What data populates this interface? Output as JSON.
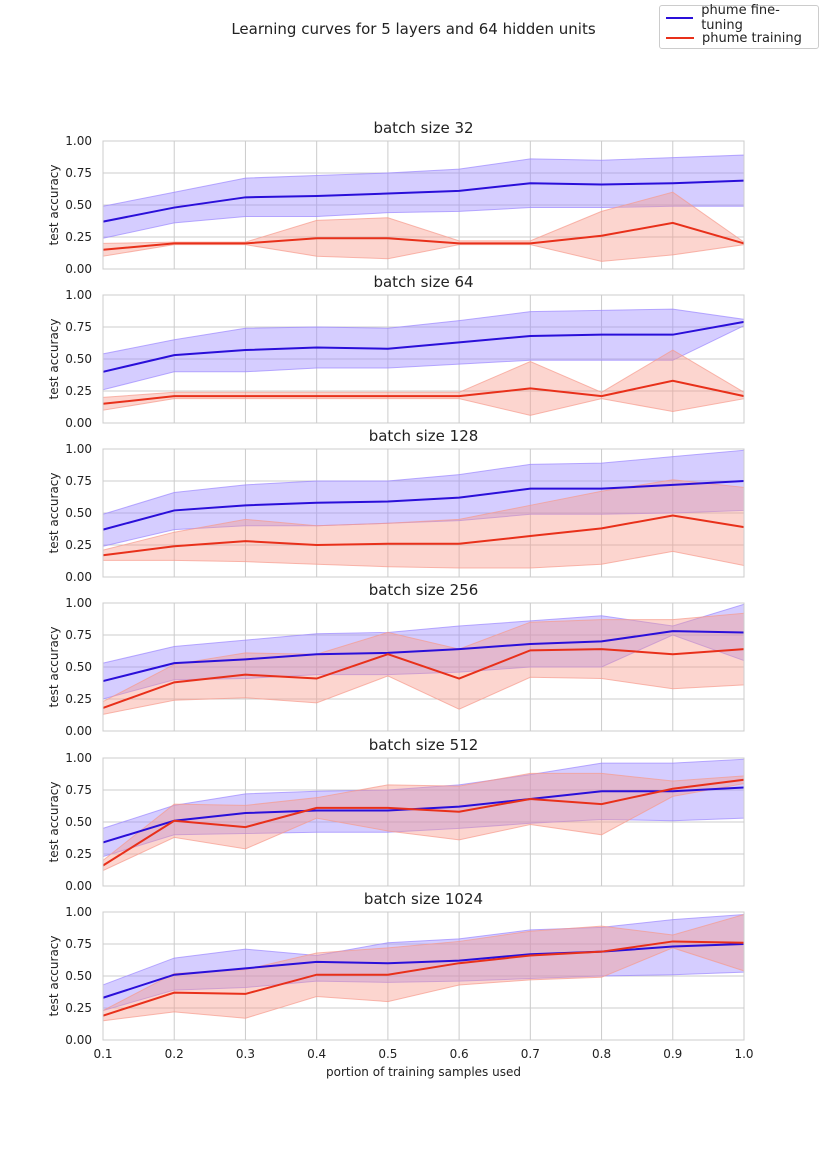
{
  "figure": {
    "suptitle": "Learning curves for 5 layers and 64 hidden units",
    "xlabel": "portion of training samples used",
    "ylabel": "test accuracy",
    "legend": [
      {
        "label": "phume fine-tuning",
        "color": "#2a0fd9"
      },
      {
        "label": "phume training",
        "color": "#e8301a"
      }
    ],
    "fill_colors": {
      "fine_tuning": "#9b87ff",
      "training": "#f79a8c"
    }
  },
  "chart_data": [
    {
      "type": "line",
      "title": "batch size 32",
      "x": [
        0.1,
        0.2,
        0.3,
        0.4,
        0.5,
        0.6,
        0.7,
        0.8,
        0.9,
        1.0
      ],
      "xlim": [
        0.1,
        1.0
      ],
      "ylim": [
        0,
        1
      ],
      "yticks": [
        0,
        0.25,
        0.5,
        0.75,
        1.0
      ],
      "grid": true,
      "series": [
        {
          "name": "phume fine-tuning",
          "values": [
            0.37,
            0.48,
            0.56,
            0.57,
            0.59,
            0.61,
            0.67,
            0.66,
            0.67,
            0.69
          ],
          "lower": [
            0.24,
            0.36,
            0.41,
            0.41,
            0.44,
            0.45,
            0.48,
            0.48,
            0.49,
            0.49
          ],
          "upper": [
            0.49,
            0.6,
            0.71,
            0.73,
            0.75,
            0.78,
            0.86,
            0.85,
            0.87,
            0.89
          ]
        },
        {
          "name": "phume training",
          "values": [
            0.15,
            0.2,
            0.2,
            0.24,
            0.24,
            0.2,
            0.2,
            0.26,
            0.36,
            0.2
          ],
          "lower": [
            0.1,
            0.19,
            0.19,
            0.1,
            0.08,
            0.19,
            0.19,
            0.06,
            0.11,
            0.19
          ],
          "upper": [
            0.2,
            0.21,
            0.21,
            0.38,
            0.4,
            0.22,
            0.22,
            0.45,
            0.6,
            0.21
          ]
        }
      ]
    },
    {
      "type": "line",
      "title": "batch size 64",
      "x": [
        0.1,
        0.2,
        0.3,
        0.4,
        0.5,
        0.6,
        0.7,
        0.8,
        0.9,
        1.0
      ],
      "xlim": [
        0.1,
        1.0
      ],
      "ylim": [
        0,
        1
      ],
      "yticks": [
        0,
        0.25,
        0.5,
        0.75,
        1.0
      ],
      "grid": true,
      "series": [
        {
          "name": "phume fine-tuning",
          "values": [
            0.4,
            0.53,
            0.57,
            0.59,
            0.58,
            0.63,
            0.68,
            0.69,
            0.69,
            0.79
          ],
          "lower": [
            0.26,
            0.4,
            0.4,
            0.43,
            0.43,
            0.46,
            0.49,
            0.49,
            0.49,
            0.76
          ],
          "upper": [
            0.54,
            0.65,
            0.74,
            0.75,
            0.74,
            0.8,
            0.87,
            0.88,
            0.89,
            0.81
          ]
        },
        {
          "name": "phume training",
          "values": [
            0.15,
            0.21,
            0.21,
            0.21,
            0.21,
            0.21,
            0.27,
            0.21,
            0.33,
            0.21
          ],
          "lower": [
            0.1,
            0.19,
            0.19,
            0.19,
            0.19,
            0.19,
            0.06,
            0.19,
            0.09,
            0.19
          ],
          "upper": [
            0.2,
            0.24,
            0.24,
            0.24,
            0.24,
            0.24,
            0.48,
            0.24,
            0.57,
            0.24
          ]
        }
      ]
    },
    {
      "type": "line",
      "title": "batch size 128",
      "x": [
        0.1,
        0.2,
        0.3,
        0.4,
        0.5,
        0.6,
        0.7,
        0.8,
        0.9,
        1.0
      ],
      "xlim": [
        0.1,
        1.0
      ],
      "ylim": [
        0,
        1
      ],
      "yticks": [
        0,
        0.25,
        0.5,
        0.75,
        1.0
      ],
      "grid": true,
      "series": [
        {
          "name": "phume fine-tuning",
          "values": [
            0.37,
            0.52,
            0.56,
            0.58,
            0.59,
            0.62,
            0.69,
            0.69,
            0.72,
            0.75
          ],
          "lower": [
            0.24,
            0.37,
            0.4,
            0.4,
            0.42,
            0.44,
            0.49,
            0.49,
            0.5,
            0.52
          ],
          "upper": [
            0.49,
            0.66,
            0.72,
            0.75,
            0.75,
            0.8,
            0.88,
            0.89,
            0.94,
            0.99
          ]
        },
        {
          "name": "phume training",
          "values": [
            0.17,
            0.24,
            0.28,
            0.25,
            0.26,
            0.26,
            0.32,
            0.38,
            0.48,
            0.39
          ],
          "lower": [
            0.13,
            0.13,
            0.12,
            0.1,
            0.08,
            0.07,
            0.07,
            0.1,
            0.2,
            0.09
          ],
          "upper": [
            0.21,
            0.35,
            0.45,
            0.4,
            0.42,
            0.45,
            0.56,
            0.67,
            0.76,
            0.7
          ]
        }
      ]
    },
    {
      "type": "line",
      "title": "batch size 256",
      "x": [
        0.1,
        0.2,
        0.3,
        0.4,
        0.5,
        0.6,
        0.7,
        0.8,
        0.9,
        1.0
      ],
      "xlim": [
        0.1,
        1.0
      ],
      "ylim": [
        0,
        1
      ],
      "yticks": [
        0,
        0.25,
        0.5,
        0.75,
        1.0
      ],
      "grid": true,
      "series": [
        {
          "name": "phume fine-tuning",
          "values": [
            0.39,
            0.53,
            0.56,
            0.6,
            0.61,
            0.64,
            0.68,
            0.7,
            0.78,
            0.77
          ],
          "lower": [
            0.25,
            0.4,
            0.41,
            0.44,
            0.44,
            0.46,
            0.5,
            0.5,
            0.75,
            0.55
          ],
          "upper": [
            0.53,
            0.66,
            0.71,
            0.76,
            0.77,
            0.82,
            0.86,
            0.9,
            0.82,
            0.99
          ]
        },
        {
          "name": "phume training",
          "values": [
            0.18,
            0.38,
            0.44,
            0.41,
            0.6,
            0.41,
            0.63,
            0.64,
            0.6,
            0.64
          ],
          "lower": [
            0.13,
            0.24,
            0.26,
            0.22,
            0.43,
            0.17,
            0.42,
            0.41,
            0.33,
            0.36
          ],
          "upper": [
            0.23,
            0.52,
            0.61,
            0.6,
            0.77,
            0.64,
            0.85,
            0.87,
            0.87,
            0.92
          ]
        }
      ]
    },
    {
      "type": "line",
      "title": "batch size 512",
      "x": [
        0.1,
        0.2,
        0.3,
        0.4,
        0.5,
        0.6,
        0.7,
        0.8,
        0.9,
        1.0
      ],
      "xlim": [
        0.1,
        1.0
      ],
      "ylim": [
        0,
        1
      ],
      "yticks": [
        0,
        0.25,
        0.5,
        0.75,
        1.0
      ],
      "grid": true,
      "series": [
        {
          "name": "phume fine-tuning",
          "values": [
            0.34,
            0.51,
            0.57,
            0.59,
            0.59,
            0.62,
            0.68,
            0.74,
            0.74,
            0.77
          ],
          "lower": [
            0.23,
            0.4,
            0.41,
            0.42,
            0.42,
            0.45,
            0.49,
            0.52,
            0.51,
            0.53
          ],
          "upper": [
            0.45,
            0.63,
            0.72,
            0.74,
            0.75,
            0.79,
            0.87,
            0.96,
            0.96,
            0.99
          ]
        },
        {
          "name": "phume training",
          "values": [
            0.16,
            0.51,
            0.46,
            0.61,
            0.61,
            0.58,
            0.68,
            0.64,
            0.76,
            0.83
          ],
          "lower": [
            0.12,
            0.38,
            0.29,
            0.53,
            0.43,
            0.36,
            0.48,
            0.4,
            0.7,
            0.8
          ],
          "upper": [
            0.2,
            0.64,
            0.63,
            0.69,
            0.79,
            0.78,
            0.88,
            0.88,
            0.82,
            0.86
          ]
        }
      ]
    },
    {
      "type": "line",
      "title": "batch size 1024",
      "x": [
        0.1,
        0.2,
        0.3,
        0.4,
        0.5,
        0.6,
        0.7,
        0.8,
        0.9,
        1.0
      ],
      "xlim": [
        0.1,
        1.0
      ],
      "ylim": [
        0,
        1
      ],
      "yticks": [
        0,
        0.25,
        0.5,
        0.75,
        1.0
      ],
      "grid": true,
      "series": [
        {
          "name": "phume fine-tuning",
          "values": [
            0.33,
            0.51,
            0.56,
            0.61,
            0.6,
            0.62,
            0.67,
            0.69,
            0.73,
            0.75
          ],
          "lower": [
            0.23,
            0.39,
            0.41,
            0.46,
            0.45,
            0.46,
            0.48,
            0.5,
            0.51,
            0.53
          ],
          "upper": [
            0.43,
            0.64,
            0.71,
            0.66,
            0.76,
            0.79,
            0.86,
            0.88,
            0.94,
            0.98
          ]
        },
        {
          "name": "phume training",
          "values": [
            0.19,
            0.37,
            0.36,
            0.51,
            0.51,
            0.6,
            0.66,
            0.69,
            0.77,
            0.76
          ],
          "lower": [
            0.15,
            0.22,
            0.17,
            0.34,
            0.3,
            0.43,
            0.47,
            0.49,
            0.72,
            0.54
          ],
          "upper": [
            0.23,
            0.52,
            0.55,
            0.68,
            0.72,
            0.77,
            0.85,
            0.89,
            0.82,
            0.98
          ]
        }
      ]
    }
  ]
}
